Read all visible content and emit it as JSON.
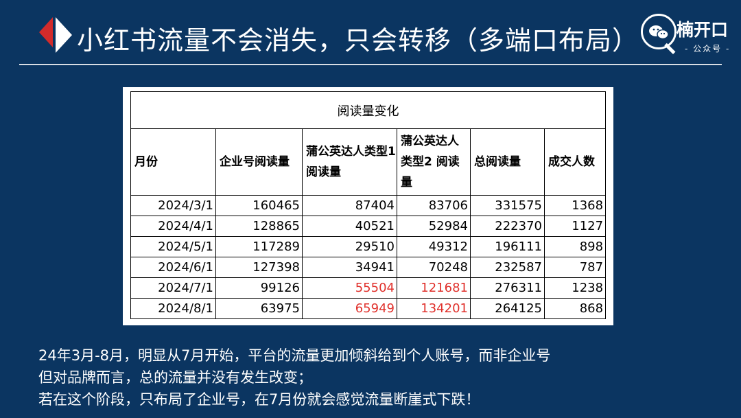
{
  "header": {
    "title": "小红书流量不会消失，只会转移（多端口布局）",
    "logo_name": "楠开口",
    "logo_sub": "- 公众号 -"
  },
  "table": {
    "caption": "阅读量变化",
    "headers": [
      "月份",
      "企业号阅读量",
      "蒲公英达人类型1 阅读量",
      "蒲公英达人类型2 阅读量",
      "总阅读量",
      "成交人数"
    ],
    "rows": [
      [
        "2024/3/1",
        "160465",
        "87404",
        "83706",
        "331575",
        "1368"
      ],
      [
        "2024/4/1",
        "128865",
        "40521",
        "52984",
        "222370",
        "1127"
      ],
      [
        "2024/5/1",
        "117289",
        "29510",
        "49312",
        "196111",
        "898"
      ],
      [
        "2024/6/1",
        "127398",
        "34941",
        "70248",
        "232587",
        "787"
      ],
      [
        "2024/7/1",
        "99126",
        "55504",
        "121681",
        "276311",
        "1238"
      ],
      [
        "2024/8/1",
        "63975",
        "65949",
        "134201",
        "264125",
        "868"
      ]
    ],
    "highlight_color": "#e0302b"
  },
  "notes": [
    "24年3月-8月，明显从7月开始，平台的流量更加倾斜给到个人账号，而非企业号",
    "但对品牌而言，总的流量并没有发生改变；",
    "若在这个阶段，只布局了企业号，在7月份就会感觉流量断崖式下跌！"
  ],
  "colors": {
    "background": "#0b3561",
    "accent_red": "#d22b2b"
  }
}
